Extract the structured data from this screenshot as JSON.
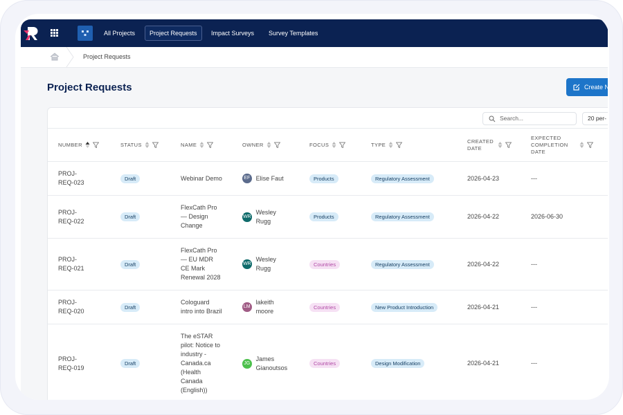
{
  "nav": {
    "items": [
      "All Projects",
      "Project Requests",
      "Impact Surveys",
      "Survey Templates"
    ],
    "active": 1
  },
  "breadcrumb": {
    "current": "Project Requests"
  },
  "page": {
    "title": "Project Requests",
    "create_button": "Create N"
  },
  "toolbar": {
    "search_placeholder": "Search...",
    "page_size": "20 per-"
  },
  "table": {
    "columns": [
      "NUMBER",
      "STATUS",
      "NAME",
      "OWNER",
      "FOCUS",
      "TYPE",
      "CREATED DATE",
      "EXPECTED COMPLETION DATE"
    ],
    "rows": [
      {
        "number": "PROJ-REQ-023",
        "status": "Draft",
        "name": "Webinar Demo",
        "owner_initials": "EF",
        "owner": "Elise Faut",
        "focus": "Products",
        "type": "Regulatory Assessment",
        "created": "2026-04-23",
        "expected": "---"
      },
      {
        "number": "PROJ-REQ-022",
        "status": "Draft",
        "name": "FlexCath Pro — Design Change",
        "owner_initials": "WR",
        "owner": "Wesley Rugg",
        "focus": "Products",
        "type": "Regulatory Assessment",
        "created": "2026-04-22",
        "expected": "2026-06-30"
      },
      {
        "number": "PROJ-REQ-021",
        "status": "Draft",
        "name": "FlexCath Pro — EU MDR CE Mark Renewal 2028",
        "owner_initials": "WR",
        "owner": "Wesley Rugg",
        "focus": "Countries",
        "type": "Regulatory Assessment",
        "created": "2026-04-22",
        "expected": "---"
      },
      {
        "number": "PROJ-REQ-020",
        "status": "Draft",
        "name": "Cologuard intro into Brazil",
        "owner_initials": "LM",
        "owner": "lakeith moore",
        "focus": "Countries",
        "type": "New Product Introduction",
        "created": "2026-04-21",
        "expected": "---"
      },
      {
        "number": "PROJ-REQ-019",
        "status": "Draft",
        "name": "The eSTAR pilot: Notice to industry - Canada.ca (Health Canada (English))",
        "owner_initials": "JG",
        "owner": "James Gianoutsos",
        "focus": "Countries",
        "type": "Design Modification",
        "created": "2026-04-21",
        "expected": "---"
      }
    ]
  }
}
